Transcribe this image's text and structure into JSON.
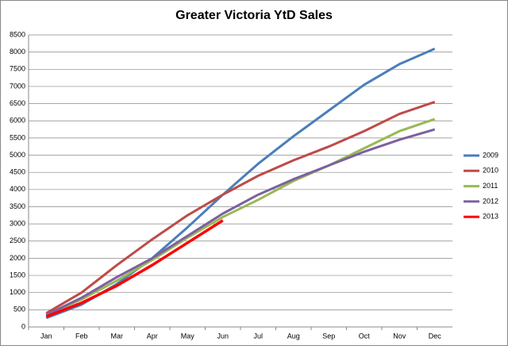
{
  "chart_data": {
    "type": "line",
    "title": "Greater Victoria YtD Sales",
    "categories": [
      "Jan",
      "Feb",
      "Mar",
      "Apr",
      "May",
      "Jun",
      "Jul",
      "Aug",
      "Sep",
      "Oct",
      "Nov",
      "Dec"
    ],
    "series": [
      {
        "name": "2009",
        "color": "#4a7ebb",
        "values": [
          260,
          650,
          1250,
          2000,
          2900,
          3850,
          4750,
          5550,
          6300,
          7050,
          7650,
          8100
        ]
      },
      {
        "name": "2010",
        "color": "#be4b48",
        "values": [
          400,
          1000,
          1800,
          2550,
          3250,
          3850,
          4400,
          4850,
          5250,
          5700,
          6200,
          6550
        ]
      },
      {
        "name": "2011",
        "color": "#98b954",
        "values": [
          350,
          800,
          1350,
          1950,
          2600,
          3200,
          3700,
          4250,
          4700,
          5200,
          5700,
          6050
        ]
      },
      {
        "name": "2012",
        "color": "#7d60a0",
        "values": [
          350,
          850,
          1450,
          2000,
          2650,
          3300,
          3850,
          4300,
          4700,
          5100,
          5450,
          5750
        ]
      },
      {
        "name": "2013",
        "color": "#ff0000",
        "values": [
          300,
          700,
          1200,
          1800,
          2450,
          3100,
          null,
          null,
          null,
          null,
          null,
          null
        ]
      }
    ],
    "ylim": [
      0,
      8500
    ],
    "yticks": [
      0,
      500,
      1000,
      1500,
      2000,
      2500,
      3000,
      3500,
      4000,
      4500,
      5000,
      5500,
      6000,
      6500,
      7000,
      7500,
      8000,
      8500
    ],
    "grid": true,
    "legend": "right"
  }
}
